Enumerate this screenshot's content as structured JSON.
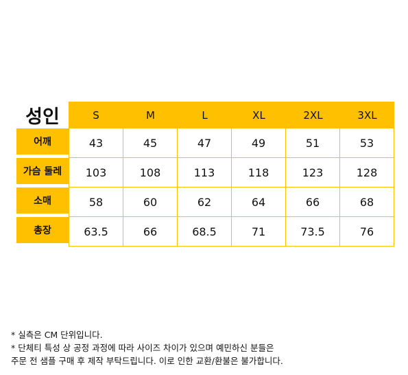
{
  "table": {
    "corner_label": "성인",
    "sizes": [
      "S",
      "M",
      "L",
      "XL",
      "2XL",
      "3XL"
    ],
    "rows": [
      {
        "label": "어깨",
        "values": [
          "43",
          "45",
          "47",
          "49",
          "51",
          "53"
        ]
      },
      {
        "label": "가슴 둘레",
        "values": [
          "103",
          "108",
          "113",
          "118",
          "123",
          "128"
        ]
      },
      {
        "label": "소매",
        "values": [
          "58",
          "60",
          "62",
          "64",
          "66",
          "68"
        ]
      },
      {
        "label": "총장",
        "values": [
          "63.5",
          "66",
          "68.5",
          "71",
          "73.5",
          "76"
        ]
      }
    ]
  },
  "notes": {
    "line1": "* 실측은 CM 단위입니다.",
    "line2": "* 단체티 특성 상 공정 과정에 따라 사이즈 차이가 있으며 예민하신 분들은",
    "line3": "주문 전 샘플 구매 후 제작 부탁드립니다. 이로 인한 교환/환불은 불가합니다."
  },
  "colors": {
    "accent": "#ffc000"
  }
}
